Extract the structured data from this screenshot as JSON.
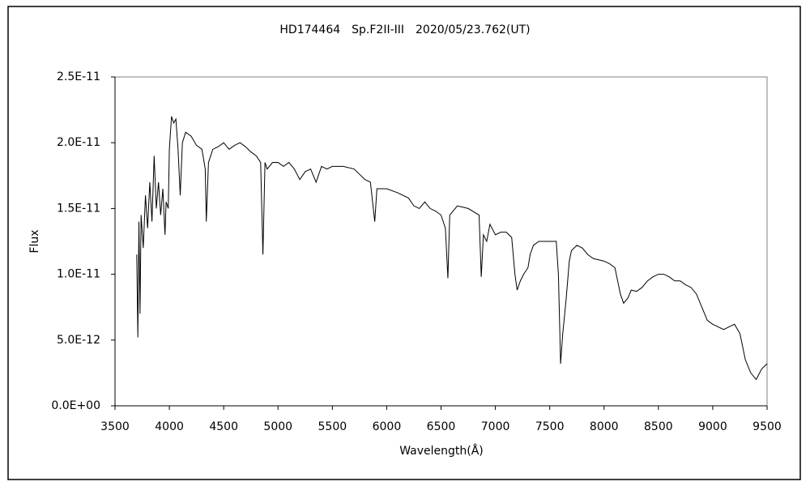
{
  "chart_data": {
    "type": "line",
    "title": "HD174464　Sp.F2II-III　2020/05/23.762(UT)",
    "x_label": "Wavelength(Å)",
    "y_label": "Flux",
    "xlim": [
      3500,
      9500
    ],
    "xticks": [
      3500,
      4000,
      4500,
      5000,
      5500,
      6000,
      6500,
      7000,
      7500,
      8000,
      8500,
      9000,
      9500
    ],
    "ylim": [
      0,
      2.5e-11
    ],
    "yticks": [
      {
        "value": 0,
        "label": "0.0E+00"
      },
      {
        "value": 5e-12,
        "label": "5.0E-12"
      },
      {
        "value": 1e-11,
        "label": "1.0E-11"
      },
      {
        "value": 1.5e-11,
        "label": "1.5E-11"
      },
      {
        "value": 2e-11,
        "label": "2.0E-11"
      },
      {
        "value": 2.5e-11,
        "label": "2.5E-11"
      }
    ],
    "grid": false,
    "color": "#000000",
    "x": [
      3700,
      3710,
      3720,
      3730,
      3740,
      3760,
      3780,
      3800,
      3820,
      3840,
      3860,
      3880,
      3900,
      3920,
      3940,
      3960,
      3970,
      3990,
      4000,
      4020,
      4040,
      4060,
      4080,
      4100,
      4120,
      4150,
      4200,
      4250,
      4300,
      4330,
      4340,
      4360,
      4400,
      4450,
      4500,
      4550,
      4600,
      4650,
      4700,
      4750,
      4800,
      4840,
      4861,
      4880,
      4900,
      4950,
      5000,
      5050,
      5100,
      5150,
      5200,
      5250,
      5300,
      5350,
      5400,
      5450,
      5500,
      5600,
      5700,
      5750,
      5800,
      5850,
      5890,
      5910,
      6000,
      6100,
      6200,
      6250,
      6300,
      6350,
      6400,
      6450,
      6500,
      6540,
      6563,
      6580,
      6650,
      6750,
      6850,
      6870,
      6890,
      6920,
      6950,
      7000,
      7050,
      7100,
      7150,
      7180,
      7200,
      7230,
      7260,
      7300,
      7320,
      7350,
      7400,
      7500,
      7560,
      7580,
      7600,
      7620,
      7650,
      7680,
      7700,
      7750,
      7800,
      7850,
      7900,
      8000,
      8050,
      8100,
      8150,
      8180,
      8220,
      8250,
      8300,
      8350,
      8400,
      8450,
      8500,
      8550,
      8600,
      8650,
      8700,
      8750,
      8800,
      8850,
      8900,
      8950,
      9000,
      9050,
      9100,
      9150,
      9200,
      9250,
      9300,
      9350,
      9400,
      9450,
      9500
    ],
    "values": [
      1.15e-11,
      5.2e-12,
      1.4e-11,
      7e-12,
      1.45e-11,
      1.2e-11,
      1.6e-11,
      1.35e-11,
      1.7e-11,
      1.4e-11,
      1.9e-11,
      1.5e-11,
      1.7e-11,
      1.45e-11,
      1.65e-11,
      1.3e-11,
      1.55e-11,
      1.5e-11,
      1.95e-11,
      2.2e-11,
      2.15e-11,
      2.18e-11,
      1.95e-11,
      1.6e-11,
      2e-11,
      2.08e-11,
      2.05e-11,
      1.98e-11,
      1.95e-11,
      1.8e-11,
      1.4e-11,
      1.85e-11,
      1.95e-11,
      1.97e-11,
      2e-11,
      1.95e-11,
      1.98e-11,
      2e-11,
      1.97e-11,
      1.93e-11,
      1.9e-11,
      1.85e-11,
      1.15e-11,
      1.85e-11,
      1.8e-11,
      1.85e-11,
      1.85e-11,
      1.82e-11,
      1.85e-11,
      1.8e-11,
      1.72e-11,
      1.78e-11,
      1.8e-11,
      1.7e-11,
      1.82e-11,
      1.8e-11,
      1.82e-11,
      1.82e-11,
      1.8e-11,
      1.76e-11,
      1.72e-11,
      1.7e-11,
      1.4e-11,
      1.65e-11,
      1.65e-11,
      1.62e-11,
      1.58e-11,
      1.52e-11,
      1.5e-11,
      1.55e-11,
      1.5e-11,
      1.48e-11,
      1.45e-11,
      1.35e-11,
      9.7e-12,
      1.45e-11,
      1.52e-11,
      1.5e-11,
      1.45e-11,
      9.8e-12,
      1.3e-11,
      1.25e-11,
      1.38e-11,
      1.3e-11,
      1.32e-11,
      1.32e-11,
      1.28e-11,
      1e-11,
      8.8e-12,
      9.5e-12,
      1e-11,
      1.05e-11,
      1.15e-11,
      1.22e-11,
      1.25e-11,
      1.25e-11,
      1.25e-11,
      1e-11,
      3.2e-12,
      5.5e-12,
      8e-12,
      1.1e-11,
      1.18e-11,
      1.22e-11,
      1.2e-11,
      1.15e-11,
      1.12e-11,
      1.1e-11,
      1.08e-11,
      1.05e-11,
      8.5e-12,
      7.8e-12,
      8.2e-12,
      8.8e-12,
      8.7e-12,
      9e-12,
      9.5e-12,
      9.8e-12,
      1e-11,
      1e-11,
      9.8e-12,
      9.5e-12,
      9.5e-12,
      9.2e-12,
      9e-12,
      8.5e-12,
      7.5e-12,
      6.5e-12,
      6.2e-12,
      6e-12,
      5.8e-12,
      6e-12,
      6.2e-12,
      5.5e-12,
      3.5e-12,
      2.5e-12,
      2e-12,
      2.8e-12,
      3.2e-12
    ]
  }
}
